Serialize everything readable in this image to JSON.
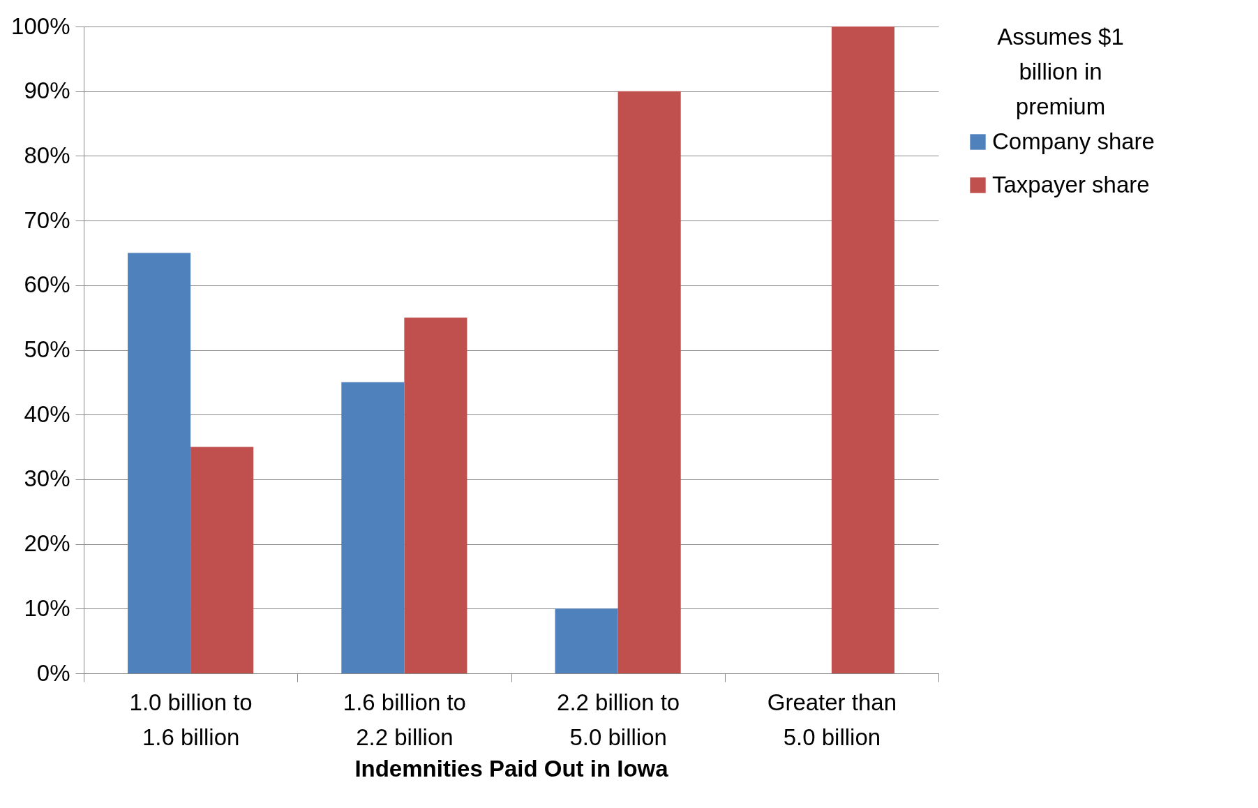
{
  "chart_data": {
    "type": "bar",
    "xlabel": "Indemnities Paid Out in Iowa",
    "legend_title": "Assumes $1 billion in premium",
    "categories": [
      "1.0 billion to 1.6 billion",
      "1.6 billion  to 2.2 billion",
      "2.2 billion to 5.0 billion",
      "Greater than 5.0 billion"
    ],
    "series": [
      {
        "name": "Company share",
        "color": "#4f81bd",
        "values": [
          65,
          45,
          10,
          0
        ]
      },
      {
        "name": "Taxpayer share",
        "color": "#c0504d",
        "values": [
          35,
          55,
          90,
          100
        ]
      }
    ],
    "ylim": [
      0,
      100
    ],
    "yticks": [
      {
        "value": 0,
        "label": "0%"
      },
      {
        "value": 10,
        "label": "10%"
      },
      {
        "value": 20,
        "label": "20%"
      },
      {
        "value": 30,
        "label": "30%"
      },
      {
        "value": 40,
        "label": "40%"
      },
      {
        "value": 50,
        "label": "50%"
      },
      {
        "value": 60,
        "label": "60%"
      },
      {
        "value": 70,
        "label": "70%"
      },
      {
        "value": 80,
        "label": "80%"
      },
      {
        "value": 90,
        "label": "90%"
      },
      {
        "value": 100,
        "label": "100%"
      }
    ],
    "grid": "y",
    "legend": "right"
  }
}
